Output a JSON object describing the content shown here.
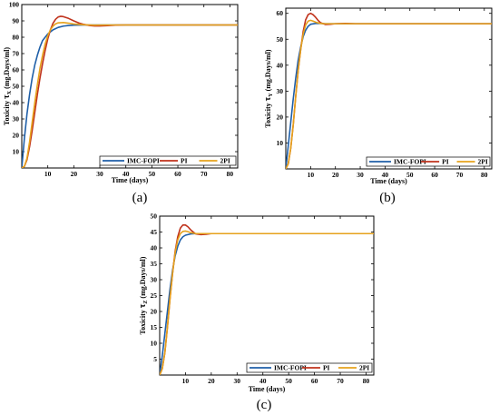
{
  "colors": {
    "imc": "#1f5fa8",
    "pi": "#c0331c",
    "twopi": "#e6a21c",
    "axis": "#000000",
    "background": "#ffffff"
  },
  "chart_data": [
    {
      "type": "line",
      "panel_label": "(a)",
      "xlabel": "Time (days)",
      "ylabel": "Toxicity τX (mg.Days/ml)",
      "ylabel_parts": [
        "Toxicity ",
        "τ",
        "X",
        " (mg.Days/ml)"
      ],
      "xlim": [
        0,
        83
      ],
      "ylim": [
        0,
        100
      ],
      "xticks": [
        10,
        20,
        30,
        40,
        50,
        60,
        70,
        80
      ],
      "yticks": [
        10,
        20,
        30,
        40,
        50,
        60,
        70,
        80,
        90,
        100
      ],
      "legend_position": "bottom-right",
      "series": [
        {
          "name": "IMC-FOPI",
          "x": [
            0,
            1,
            2,
            3,
            4,
            5,
            6,
            7,
            8,
            10,
            12,
            14,
            16,
            18,
            20,
            25,
            30,
            40,
            60,
            83
          ],
          "y": [
            0,
            18,
            33,
            45,
            55,
            63,
            69,
            74,
            78,
            82,
            84.5,
            86,
            86.8,
            87.2,
            87.4,
            87.5,
            87.5,
            87.5,
            87.5,
            87.5
          ]
        },
        {
          "name": "PI",
          "x": [
            0,
            1,
            2,
            3,
            4,
            5,
            6,
            7,
            8,
            9,
            10,
            11,
            12,
            13,
            14,
            15,
            16,
            18,
            20,
            22,
            24,
            26,
            28,
            30,
            33,
            36,
            40,
            50,
            60,
            83
          ],
          "y": [
            0,
            1,
            5,
            13,
            23,
            34,
            45,
            55,
            64,
            72,
            79,
            84.5,
            88.5,
            91,
            92.4,
            92.8,
            92.6,
            91.5,
            90,
            88.7,
            87.8,
            87.2,
            86.9,
            86.9,
            87.1,
            87.4,
            87.5,
            87.5,
            87.5,
            87.5
          ]
        },
        {
          "name": "2PI",
          "x": [
            0,
            1,
            2,
            3,
            4,
            5,
            6,
            7,
            8,
            9,
            10,
            11,
            12,
            13,
            14,
            16,
            18,
            20,
            24,
            28,
            32,
            40,
            60,
            83
          ],
          "y": [
            0,
            1,
            6,
            16,
            28,
            40,
            51,
            61,
            69,
            76,
            81,
            84.5,
            86.8,
            88.2,
            88.8,
            89,
            88.6,
            88.1,
            87.6,
            87.4,
            87.5,
            87.5,
            87.5,
            87.5
          ]
        }
      ]
    },
    {
      "type": "line",
      "panel_label": "(b)",
      "xlabel": "Time (days)",
      "ylabel": "Toxicity τY (mg.Days/ml)",
      "ylabel_parts": [
        "Toxicity ",
        "τ",
        "Y",
        " (mg.Days/ml)"
      ],
      "xlim": [
        0,
        83
      ],
      "ylim": [
        0,
        62
      ],
      "xticks": [
        10,
        20,
        30,
        40,
        50,
        60,
        70,
        80
      ],
      "yticks": [
        10,
        20,
        30,
        40,
        50,
        60
      ],
      "legend_position": "bottom-right",
      "series": [
        {
          "name": "IMC-FOPI",
          "x": [
            0,
            1,
            2,
            3,
            4,
            5,
            6,
            7,
            8,
            9,
            10,
            12,
            14,
            16,
            20,
            30,
            83
          ],
          "y": [
            0,
            9,
            18,
            27,
            35,
            42,
            47,
            51,
            53.5,
            55,
            55.8,
            56.1,
            56.1,
            56,
            56,
            56,
            56
          ]
        },
        {
          "name": "PI",
          "x": [
            0,
            1,
            2,
            3,
            4,
            5,
            6,
            7,
            8,
            9,
            10,
            11,
            12,
            13,
            14,
            16,
            18,
            20,
            24,
            28,
            40,
            83
          ],
          "y": [
            0,
            2,
            8,
            17,
            28,
            38,
            46,
            53,
            57.5,
            59.5,
            60,
            59.5,
            58.5,
            57.3,
            56.4,
            55.7,
            55.8,
            56,
            56.1,
            56,
            56,
            56
          ]
        },
        {
          "name": "2PI",
          "x": [
            0,
            1,
            2,
            3,
            4,
            5,
            6,
            7,
            8,
            9,
            10,
            11,
            12,
            14,
            16,
            20,
            30,
            83
          ],
          "y": [
            0,
            2,
            8,
            17,
            28,
            38,
            46,
            52,
            55.5,
            57,
            57.3,
            57,
            56.6,
            56.1,
            56,
            56,
            56,
            56
          ]
        }
      ]
    },
    {
      "type": "line",
      "panel_label": "(c)",
      "xlabel": "Time (days)",
      "ylabel": "Toxicity τZ (mg.Days/ml)",
      "ylabel_parts": [
        "Toxicity ",
        "τ",
        "Z",
        " (mg.Days/ml)"
      ],
      "xlim": [
        0,
        83
      ],
      "ylim": [
        0,
        50
      ],
      "xticks": [
        10,
        20,
        30,
        40,
        50,
        60,
        70,
        80
      ],
      "yticks": [
        5,
        10,
        15,
        20,
        25,
        30,
        35,
        40,
        45,
        50
      ],
      "legend_position": "bottom-right",
      "series": [
        {
          "name": "IMC-FOPI",
          "x": [
            0,
            1,
            2,
            3,
            4,
            5,
            6,
            7,
            8,
            9,
            10,
            12,
            14,
            16,
            20,
            30,
            83
          ],
          "y": [
            0,
            6,
            13,
            20,
            27,
            33,
            37.5,
            40.5,
            42.5,
            43.5,
            44,
            44.4,
            44.5,
            44.5,
            44.5,
            44.5,
            44.5
          ]
        },
        {
          "name": "PI",
          "x": [
            0,
            1,
            2,
            3,
            4,
            5,
            6,
            7,
            8,
            9,
            10,
            11,
            12,
            13,
            14,
            16,
            18,
            20,
            24,
            30,
            83
          ],
          "y": [
            0,
            2,
            7,
            15,
            24,
            32,
            39,
            43.5,
            46.2,
            47.2,
            47.2,
            46.6,
            45.7,
            45,
            44.4,
            44.2,
            44.3,
            44.5,
            44.5,
            44.5,
            44.5
          ]
        },
        {
          "name": "2PI",
          "x": [
            0,
            1,
            2,
            3,
            4,
            5,
            6,
            7,
            8,
            9,
            10,
            11,
            12,
            14,
            16,
            20,
            30,
            83
          ],
          "y": [
            0,
            2,
            7,
            15,
            24,
            32,
            38.5,
            42.5,
            44.5,
            45.2,
            45.3,
            45.1,
            44.8,
            44.5,
            44.5,
            44.5,
            44.5,
            44.5
          ]
        }
      ]
    }
  ]
}
